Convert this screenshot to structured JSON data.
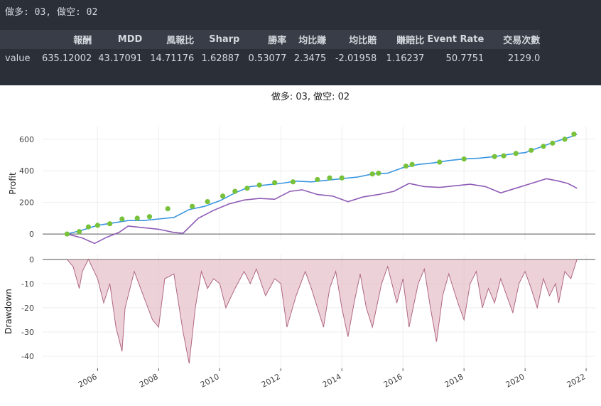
{
  "header": "做多: 03, 做空: 02",
  "metrics": {
    "headers": [
      "報酬",
      "MDD",
      "風報比",
      "Sharp",
      "勝率",
      "均比賺",
      "均比賠",
      "賺賠比",
      "Event Rate",
      "交易次數"
    ],
    "row_label": "value",
    "values": [
      "635.12002",
      "43.17091",
      "14.71176",
      "1.62887",
      "0.53077",
      "2.3475",
      "-2.01958",
      "1.16237",
      "50.7751",
      "2129.0"
    ]
  },
  "chart_data": [
    {
      "type": "line",
      "title": "做多: 03, 做空: 02",
      "ylabel": "Profit",
      "ylim": [
        -40,
        680
      ],
      "yticks": [
        0,
        200,
        400,
        600
      ],
      "xlim": [
        2004.2,
        2022.3
      ],
      "grid": true,
      "colors": {
        "cumulative": "#3a96e0",
        "secondary": "#8e5bb5",
        "new_high": "#78c13a"
      },
      "series": [
        {
          "name": "",
          "role": "cumulative",
          "x": [
            2005.0,
            2005.5,
            2006.0,
            2006.5,
            2007.0,
            2007.5,
            2008.0,
            2008.5,
            2009.0,
            2009.5,
            2010.0,
            2010.5,
            2011.0,
            2011.5,
            2012.0,
            2012.5,
            2013.0,
            2013.5,
            2014.0,
            2014.5,
            2015.0,
            2015.5,
            2016.0,
            2016.5,
            2017.0,
            2017.5,
            2018.0,
            2018.5,
            2019.0,
            2019.5,
            2020.0,
            2020.5,
            2021.0,
            2021.5,
            2021.7
          ],
          "y": [
            0,
            25,
            55,
            70,
            85,
            85,
            95,
            105,
            155,
            175,
            210,
            260,
            300,
            310,
            320,
            335,
            330,
            340,
            350,
            360,
            380,
            385,
            420,
            440,
            450,
            465,
            475,
            480,
            490,
            505,
            515,
            550,
            585,
            615,
            632
          ]
        },
        {
          "name": "",
          "role": "secondary",
          "x": [
            2005.0,
            2005.5,
            2005.9,
            2006.3,
            2006.7,
            2007.0,
            2007.5,
            2008.0,
            2008.5,
            2008.8,
            2009.3,
            2009.8,
            2010.3,
            2010.8,
            2011.3,
            2011.8,
            2012.3,
            2012.7,
            2013.2,
            2013.7,
            2014.2,
            2014.7,
            2015.2,
            2015.7,
            2016.2,
            2016.7,
            2017.2,
            2017.7,
            2018.2,
            2018.7,
            2019.2,
            2019.7,
            2020.2,
            2020.7,
            2021.1,
            2021.4,
            2021.7
          ],
          "y": [
            0,
            -25,
            -60,
            -20,
            10,
            50,
            40,
            30,
            10,
            5,
            100,
            150,
            190,
            215,
            225,
            220,
            270,
            280,
            250,
            240,
            205,
            235,
            250,
            270,
            320,
            300,
            295,
            305,
            315,
            300,
            260,
            290,
            320,
            350,
            335,
            320,
            290
          ]
        },
        {
          "name": "",
          "role": "new_high",
          "x": [
            2005.0,
            2005.4,
            2005.7,
            2006.0,
            2006.4,
            2006.8,
            2007.3,
            2007.7,
            2008.3,
            2009.1,
            2009.6,
            2010.1,
            2010.5,
            2010.9,
            2011.3,
            2011.8,
            2012.4,
            2013.2,
            2013.6,
            2014.0,
            2015.0,
            2015.2,
            2016.1,
            2016.3,
            2017.2,
            2018.0,
            2019.0,
            2019.3,
            2019.7,
            2020.2,
            2020.6,
            2020.9,
            2021.3,
            2021.6
          ],
          "y": [
            0,
            15,
            45,
            55,
            65,
            95,
            100,
            110,
            160,
            175,
            205,
            240,
            270,
            290,
            310,
            325,
            330,
            345,
            355,
            355,
            380,
            385,
            430,
            440,
            455,
            475,
            490,
            495,
            510,
            530,
            555,
            575,
            600,
            632
          ]
        }
      ]
    },
    {
      "type": "area",
      "ylabel": "Drawdown",
      "ylim": [
        -45,
        2
      ],
      "yticks": [
        0,
        -10,
        -20,
        -30,
        -40
      ],
      "xlim": [
        2004.2,
        2022.3
      ],
      "xticks": [
        "2006",
        "2008",
        "2010",
        "2012",
        "2014",
        "2016",
        "2018",
        "2020",
        "2022"
      ],
      "grid": true,
      "colors": {
        "fill": "#e3b9c4",
        "line": "#b06782"
      },
      "series": [
        {
          "name": "",
          "x": [
            2005.0,
            2005.2,
            2005.4,
            2005.5,
            2005.7,
            2006.0,
            2006.2,
            2006.4,
            2006.6,
            2006.8,
            2006.9,
            2007.2,
            2007.5,
            2007.8,
            2008.0,
            2008.2,
            2008.5,
            2008.8,
            2009.0,
            2009.2,
            2009.4,
            2009.6,
            2009.8,
            2010.0,
            2010.2,
            2010.5,
            2010.8,
            2011.0,
            2011.2,
            2011.5,
            2011.8,
            2012.0,
            2012.2,
            2012.5,
            2012.8,
            2013.0,
            2013.2,
            2013.4,
            2013.6,
            2013.8,
            2014.0,
            2014.2,
            2014.4,
            2014.6,
            2014.8,
            2015.0,
            2015.3,
            2015.5,
            2015.8,
            2016.0,
            2016.2,
            2016.5,
            2016.7,
            2016.9,
            2017.1,
            2017.3,
            2017.5,
            2017.8,
            2018.0,
            2018.2,
            2018.4,
            2018.6,
            2018.8,
            2019.0,
            2019.2,
            2019.4,
            2019.6,
            2019.8,
            2020.0,
            2020.2,
            2020.4,
            2020.6,
            2020.8,
            2021.0,
            2021.1,
            2021.3,
            2021.5,
            2021.7
          ],
          "y": [
            0,
            -3,
            -12,
            -5,
            0,
            -8,
            -18,
            -10,
            -28,
            -38,
            -20,
            -5,
            -15,
            -25,
            -28,
            -8,
            -6,
            -30,
            -43,
            -20,
            -5,
            -12,
            -8,
            -10,
            -20,
            -12,
            -5,
            -10,
            -4,
            -15,
            -8,
            -10,
            -28,
            -15,
            -5,
            -12,
            -20,
            -28,
            -12,
            -5,
            -20,
            -32,
            -18,
            -6,
            -20,
            -28,
            -10,
            -3,
            -18,
            -8,
            -28,
            -10,
            -4,
            -20,
            -34,
            -15,
            -6,
            -18,
            -25,
            -10,
            -5,
            -20,
            -12,
            -18,
            -8,
            -15,
            -22,
            -10,
            -5,
            -12,
            -20,
            -8,
            -15,
            -10,
            -18,
            -5,
            -8,
            0
          ]
        }
      ]
    }
  ]
}
